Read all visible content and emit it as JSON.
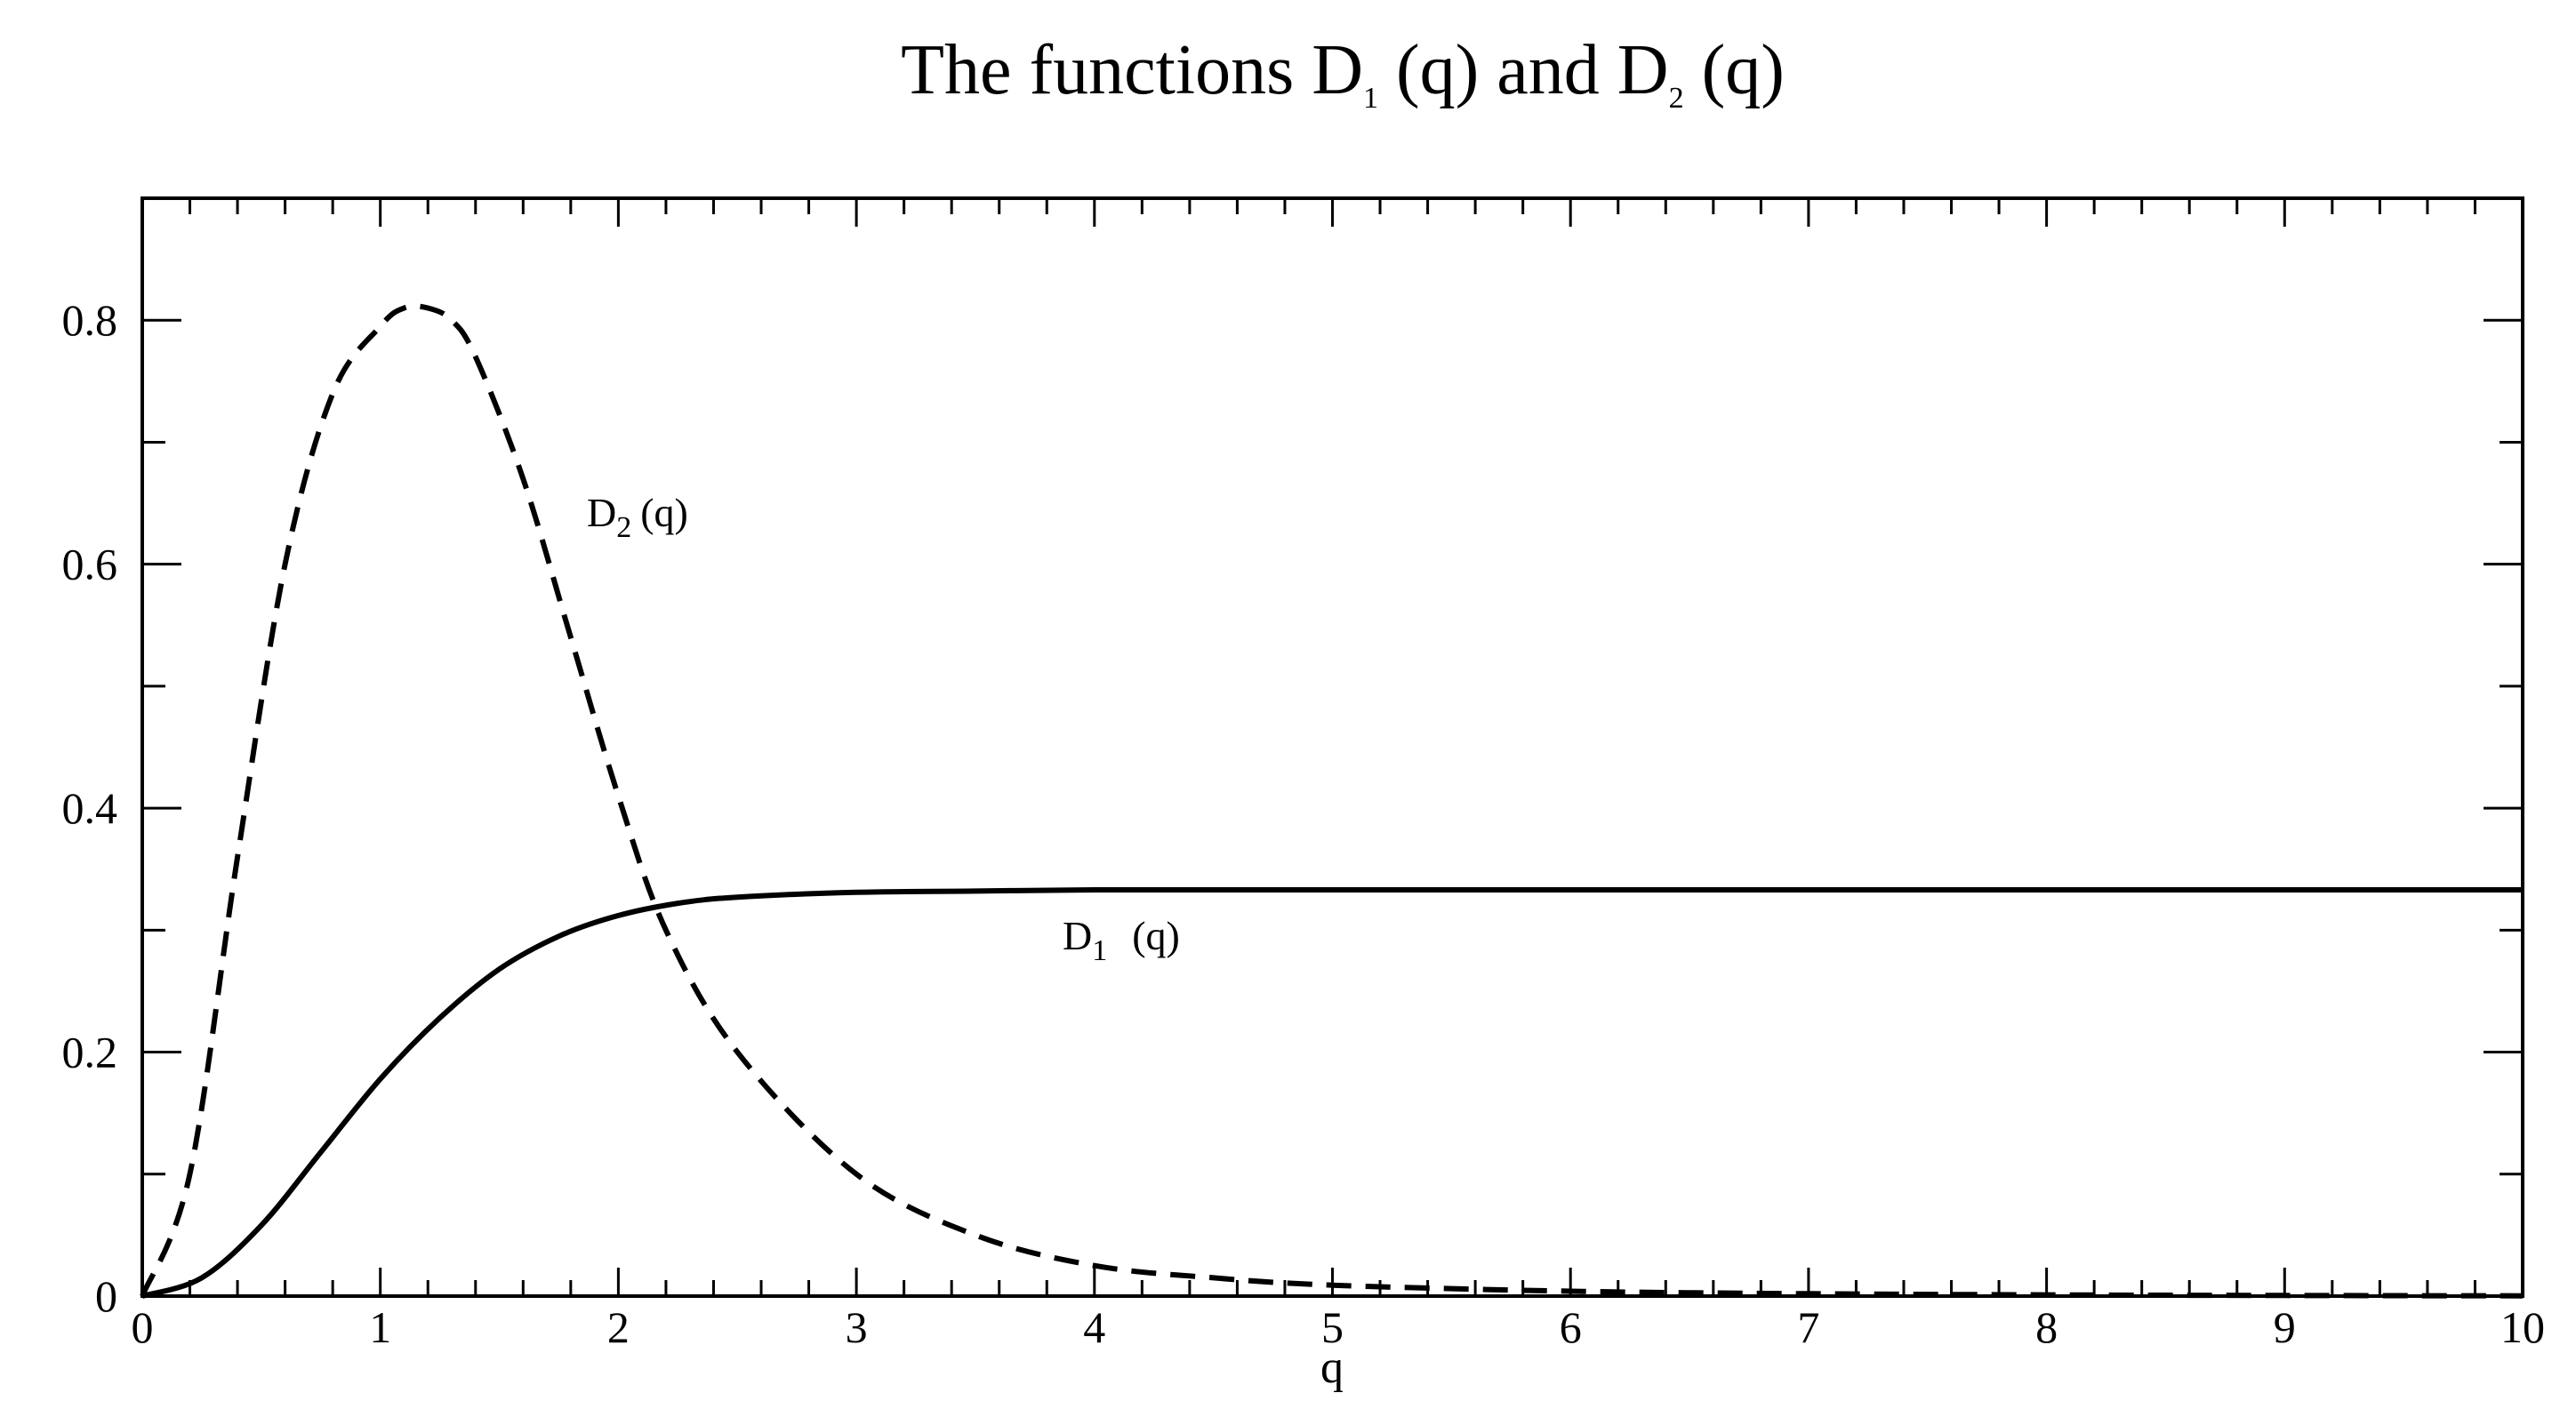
{
  "chart_data": {
    "type": "line",
    "title": {
      "prefix": "The functions D",
      "sub1": "1",
      "mid": " (q) and D",
      "sub2": "2",
      "suffix": " (q)"
    },
    "xlabel": "q",
    "ylabel": "",
    "xlim": [
      0,
      10
    ],
    "ylim": [
      0,
      0.9
    ],
    "x_ticks": [
      "0",
      "1",
      "2",
      "3",
      "4",
      "5",
      "6",
      "7",
      "8",
      "9",
      "10"
    ],
    "y_ticks": [
      "0",
      "0.2",
      "0.4",
      "0.6",
      "0.8"
    ],
    "grid": false,
    "series": [
      {
        "id": "D1",
        "label": {
          "base": "D",
          "sub": "1",
          "rest": "(q)"
        },
        "style": "solid",
        "color": "#000000",
        "x": [
          0,
          0.25,
          0.5,
          0.75,
          1.0,
          1.25,
          1.5,
          1.75,
          2.0,
          2.25,
          2.5,
          3.0,
          3.5,
          4.0,
          5.0,
          6.0,
          7.0,
          8.0,
          9.0,
          10.0
        ],
        "y": [
          0,
          0.015,
          0.058,
          0.118,
          0.178,
          0.228,
          0.268,
          0.295,
          0.312,
          0.322,
          0.327,
          0.331,
          0.332,
          0.333,
          0.333,
          0.333,
          0.333,
          0.333,
          0.333,
          0.333
        ]
      },
      {
        "id": "D2",
        "label": {
          "base": "D",
          "sub": "2",
          "rest": "(q)"
        },
        "style": "dashed",
        "color": "#000000",
        "x": [
          0,
          0.2,
          0.4,
          0.6,
          0.8,
          1.0,
          1.1,
          1.2,
          1.3,
          1.4,
          1.6,
          1.8,
          2.0,
          2.2,
          2.5,
          3.0,
          3.5,
          4.0,
          4.5,
          5.0,
          6.0,
          7.0,
          8.0,
          9.0,
          10.0
        ],
        "y": [
          0,
          0.1,
          0.36,
          0.6,
          0.74,
          0.795,
          0.81,
          0.81,
          0.8,
          0.77,
          0.67,
          0.54,
          0.41,
          0.3,
          0.2,
          0.1,
          0.05,
          0.025,
          0.015,
          0.009,
          0.004,
          0.002,
          0.001,
          0.0005,
          0.0002
        ]
      }
    ]
  }
}
